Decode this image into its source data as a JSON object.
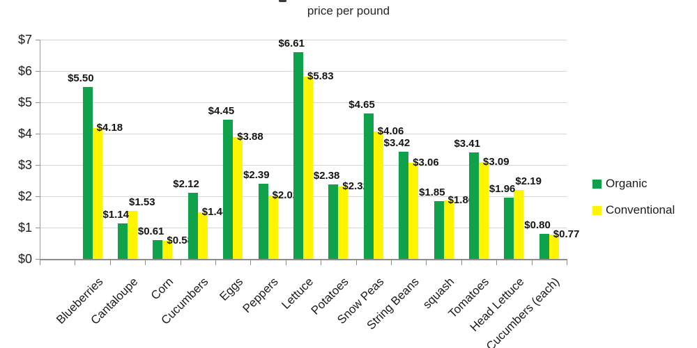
{
  "header": {
    "subtitle": "price per pound"
  },
  "chart_data": {
    "type": "bar",
    "title": "price per pound",
    "categories": [
      "Blueberries",
      "Cantaloupe",
      "Corn",
      "Cucumbers",
      "Eggs",
      "Peppers",
      "Lettuce",
      "Potatoes",
      "Snow Peas",
      "String Beans",
      "squash",
      "Tomatoes",
      "Head Lettuce",
      "Cucumbers (each)"
    ],
    "series": [
      {
        "name": "Organic",
        "color": "#0FA24B",
        "values": [
          5.5,
          1.14,
          0.61,
          2.12,
          4.45,
          2.39,
          6.61,
          2.38,
          4.65,
          3.42,
          1.85,
          3.41,
          1.96,
          0.8
        ]
      },
      {
        "name": "Conventional",
        "color": "#FFF500",
        "values": [
          4.18,
          1.53,
          0.58,
          1.48,
          3.88,
          2.02,
          5.83,
          2.32,
          4.06,
          3.06,
          1.86,
          3.09,
          2.19,
          0.77
        ]
      }
    ],
    "value_prefix": "$",
    "value_decimals": 2,
    "ylim": [
      0,
      7
    ],
    "y_tick_step": 1,
    "y_tick_labels": [
      "$0",
      "$1",
      "$2",
      "$3",
      "$4",
      "$5",
      "$6",
      "$7"
    ],
    "grid": true,
    "legend_position": "right",
    "x_labels_rotation_deg": 45,
    "leading_empty_slot": true
  },
  "colors": {
    "grid": "#D6D6D6",
    "axis": "#8C8C8C",
    "text": "#1B1B1B",
    "data_label": "#141414",
    "background": "#FFFFFF"
  }
}
